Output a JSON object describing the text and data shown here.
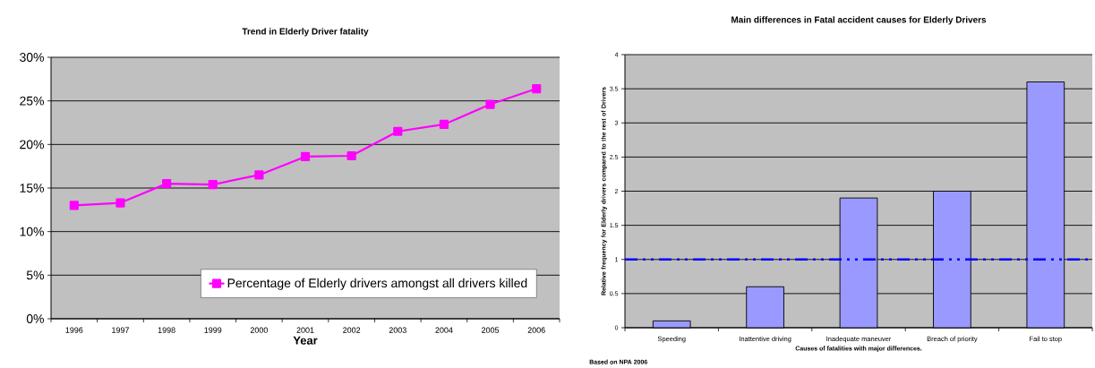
{
  "chart_data": [
    {
      "type": "line",
      "title": "Trend in Elderly Driver fatality",
      "xlabel": "Year",
      "categories": [
        "1996",
        "1997",
        "1998",
        "1999",
        "2000",
        "2001",
        "2002",
        "2003",
        "2004",
        "2005",
        "2006"
      ],
      "series": [
        {
          "name": "Percentage of Elderly drivers amongst all drivers killed",
          "color": "#ff00ff",
          "values": [
            13.0,
            13.3,
            15.5,
            15.4,
            16.5,
            18.6,
            18.7,
            21.5,
            22.3,
            24.6,
            26.4
          ]
        }
      ],
      "ylim": [
        0,
        30
      ],
      "yticks": [
        {
          "value": 0,
          "label": "0%"
        },
        {
          "value": 5,
          "label": "5%"
        },
        {
          "value": 10,
          "label": "10%"
        },
        {
          "value": 15,
          "label": "15%"
        },
        {
          "value": 20,
          "label": "20%"
        },
        {
          "value": 25,
          "label": "25%"
        },
        {
          "value": 30,
          "label": "30%"
        }
      ],
      "grid": "y",
      "legend": "bottom right",
      "marker": "square"
    },
    {
      "type": "bar",
      "title": "Main differences in Fatal accident causes for Elderly Drivers",
      "xlabel": "Causes of fatalities with major differences.",
      "ylabel": "Relative frequency for Elderly drivers compared to the rest of Drivers",
      "categories": [
        "Speeding",
        "Inattentive driving",
        "Inadequate maneuver",
        "Breach of priority",
        "Fail to stop"
      ],
      "values": [
        0.1,
        0.6,
        1.9,
        2.0,
        3.6
      ],
      "color": "#9999ff",
      "ylim": [
        0,
        4
      ],
      "yticks": [
        0,
        0.5,
        1,
        1.5,
        2,
        2.5,
        3,
        3.5,
        4
      ],
      "grid": "y",
      "ref_lines": [
        {
          "axis": "y",
          "value": 1,
          "color": "#0000ff",
          "line_style": "dashdotdot"
        }
      ],
      "annotations": [
        "Based on NPA 2006"
      ]
    }
  ]
}
